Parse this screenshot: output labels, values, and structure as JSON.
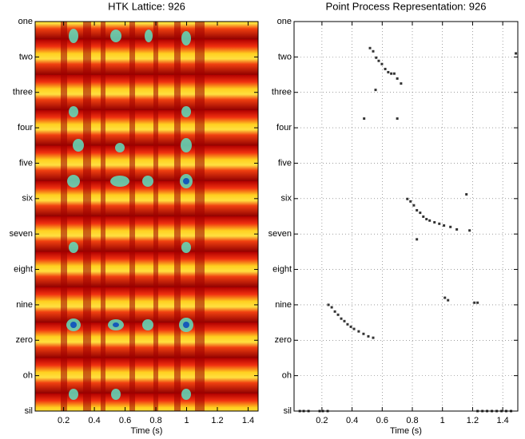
{
  "chart_data": [
    {
      "type": "heatmap",
      "title": "HTK Lattice: 926",
      "xlabel": "Time (s)",
      "xlim": [
        0.015,
        1.465
      ],
      "xticks": [
        0.2,
        0.4,
        0.6,
        0.8,
        1,
        1.2,
        1.4
      ],
      "ylim": [
        1,
        12
      ],
      "reverse_y": true,
      "yticks": [
        {
          "value": 1,
          "label": "one"
        },
        {
          "value": 2,
          "label": "two"
        },
        {
          "value": 3,
          "label": "three"
        },
        {
          "value": 4,
          "label": "four"
        },
        {
          "value": 5,
          "label": "five"
        },
        {
          "value": 6,
          "label": "six"
        },
        {
          "value": 7,
          "label": "seven"
        },
        {
          "value": 8,
          "label": "eight"
        },
        {
          "value": 9,
          "label": "nine"
        },
        {
          "value": 10,
          "label": "zero"
        },
        {
          "value": 11,
          "label": "oh"
        },
        {
          "value": 12,
          "label": "sil"
        }
      ],
      "grid": false
    },
    {
      "type": "scatter",
      "title": "Point Process Representation: 926",
      "xlabel": "Time (s)",
      "xlim": [
        0.015,
        1.5
      ],
      "xticks": [
        0.2,
        0.4,
        0.6,
        0.8,
        1,
        1.2,
        1.4
      ],
      "ylim": [
        1,
        12
      ],
      "reverse_y": true,
      "yticks": [
        {
          "value": 1,
          "label": "one"
        },
        {
          "value": 2,
          "label": "two"
        },
        {
          "value": 3,
          "label": "three"
        },
        {
          "value": 4,
          "label": "four"
        },
        {
          "value": 5,
          "label": "five"
        },
        {
          "value": 6,
          "label": "six"
        },
        {
          "value": 7,
          "label": "seven"
        },
        {
          "value": 8,
          "label": "eight"
        },
        {
          "value": 9,
          "label": "nine"
        },
        {
          "value": 10,
          "label": "zero"
        },
        {
          "value": 11,
          "label": "oh"
        },
        {
          "value": 12,
          "label": "sil"
        }
      ],
      "grid": true,
      "color": "#333333",
      "x": [
        0.519,
        0.54,
        0.56,
        0.577,
        0.598,
        0.62,
        0.64,
        0.66,
        0.68,
        0.7,
        0.725,
        0.556,
        0.48,
        0.7,
        1.487,
        0.767,
        0.788,
        0.81,
        0.83,
        0.852,
        0.873,
        0.894,
        0.915,
        0.947,
        0.979,
        1.01,
        1.053,
        1.095,
        1.18,
        0.83,
        1.159,
        1.016,
        1.037,
        1.212,
        1.233,
        0.243,
        0.265,
        0.286,
        0.307,
        0.328,
        0.349,
        0.37,
        0.392,
        0.413,
        0.444,
        0.476,
        0.508,
        0.54,
        0.053,
        0.079,
        0.111,
        0.185,
        0.206,
        0.238,
        1.233,
        1.265,
        1.296,
        1.328,
        1.36,
        1.392,
        1.423,
        1.455
      ],
      "values": [
        1.75,
        1.84,
        2.02,
        2.11,
        2.2,
        2.34,
        2.43,
        2.47,
        2.47,
        2.61,
        2.75,
        2.93,
        3.74,
        3.74,
        1.9,
        6.01,
        6.08,
        6.19,
        6.33,
        6.4,
        6.51,
        6.58,
        6.62,
        6.67,
        6.71,
        6.76,
        6.8,
        6.87,
        6.9,
        7.15,
        5.88,
        8.8,
        8.87,
        8.94,
        8.94,
        9.0,
        9.07,
        9.19,
        9.28,
        9.39,
        9.46,
        9.55,
        9.62,
        9.68,
        9.75,
        9.82,
        9.89,
        9.93,
        12,
        12,
        12,
        12,
        12,
        12,
        12,
        12,
        12,
        12,
        12,
        12,
        12,
        12
      ]
    }
  ]
}
